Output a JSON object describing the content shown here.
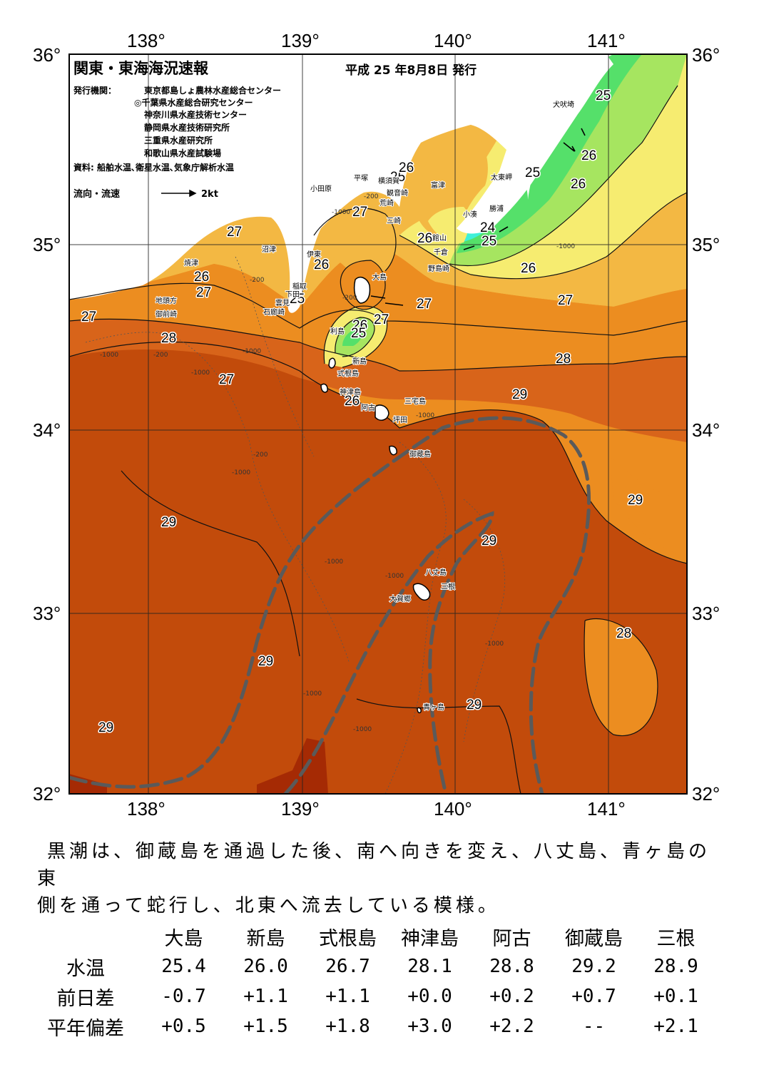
{
  "map": {
    "title": "関東・東海海況速報",
    "date": "平成 25 年8月8日 発行",
    "publisher_label": "発行機関：",
    "publishers": [
      "東京都島しょ農林水産総合センター",
      "◎千葉県水産総合研究センター",
      "神奈川県水産技術センター",
      "静岡県水産技術研究所",
      "三重県水産研究所",
      "和歌山県水産試験場"
    ],
    "source": "資料: 船舶水温､衛星水温､気象庁解析水温",
    "legend_label": "流向・流速",
    "legend_scale": "2kt",
    "lon_ticks": [
      "138°",
      "139°",
      "140°",
      "141°"
    ],
    "lat_ticks": [
      "36°",
      "35°",
      "34°",
      "33°",
      "32°"
    ],
    "colors": {
      "t23": "#3ef0d8",
      "t24": "#55e06a",
      "t25": "#a6e560",
      "t26": "#f6ec70",
      "t27": "#f3b843",
      "t28": "#ec8d20",
      "t29": "#c24b0b",
      "t30": "#a52a04",
      "kuroshio_axis": "#5a5a5a"
    },
    "isotherm_labels": [
      "25",
      "25",
      "26",
      "26",
      "25",
      "24",
      "25",
      "26",
      "27",
      "27",
      "28",
      "29",
      "29",
      "29",
      "29",
      "29",
      "29",
      "29",
      "28",
      "27",
      "27",
      "26",
      "26",
      "27",
      "28",
      "27",
      "26",
      "26",
      "27",
      "27",
      "26",
      "25",
      "26",
      "25"
    ],
    "place_names": [
      "犬吠埼",
      "太東岬",
      "勝浦",
      "小湊",
      "館山",
      "千倉",
      "野島崎",
      "富津",
      "観音崎",
      "横須賀",
      "平塚",
      "荒崎",
      "三崎",
      "小田原",
      "沼津",
      "伊東",
      "稲取",
      "下田",
      "雲見",
      "石廊崎",
      "焼津",
      "地頭方",
      "御前崎",
      "大島",
      "利島",
      "新島",
      "式根島",
      "神津島",
      "三宅島",
      "阿古",
      "坪田",
      "御蔵島",
      "八丈島",
      "三根",
      "大賀郷",
      "青ヶ島"
    ],
    "depth_labels": [
      "-200",
      "-1000"
    ]
  },
  "summary": {
    "line1": "黒潮は、御蔵島を通過した後、南へ向きを変え、八丈島、青ヶ島の東",
    "line2": "側を通って蛇行し、北東へ流去している模様。"
  },
  "table": {
    "columns": [
      "大島",
      "新島",
      "式根島",
      "神津島",
      "阿古",
      "御蔵島",
      "三根"
    ],
    "rows": [
      {
        "label": "水温",
        "values": [
          "25.4",
          "26.0",
          "26.7",
          "28.1",
          "28.8",
          "29.2",
          "28.9"
        ]
      },
      {
        "label": "前日差",
        "values": [
          "-0.7",
          "+1.1",
          "+1.1",
          "+0.0",
          "+0.2",
          "+0.7",
          "+0.1"
        ]
      },
      {
        "label": "平年偏差",
        "values": [
          "+0.5",
          "+1.5",
          "+1.8",
          "+3.0",
          "+2.2",
          "--",
          "+2.1"
        ]
      }
    ]
  }
}
